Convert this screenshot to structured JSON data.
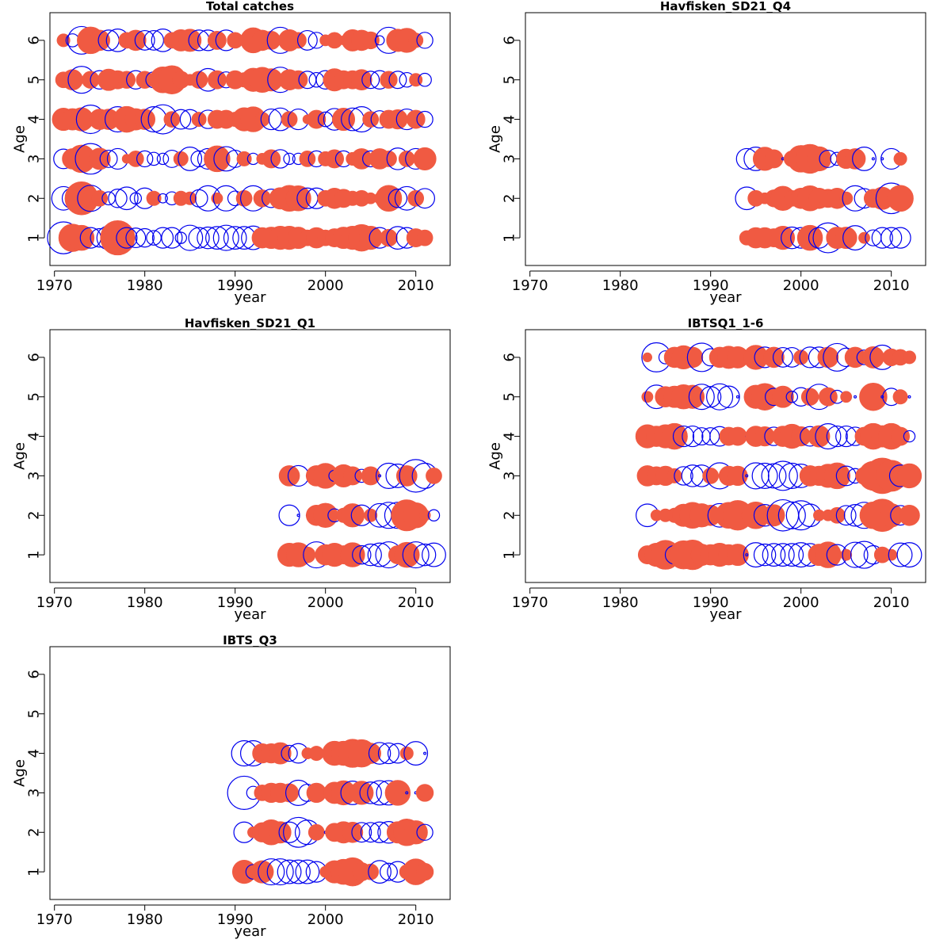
{
  "colors": {
    "positive": "#f05a42",
    "negative": "#0000ee"
  },
  "layout_grid": "3 rows x 2 columns, bottom-right empty",
  "chart_data": [
    {
      "type": "scatter",
      "title": "Total catches",
      "xlabel": "year",
      "ylabel": "Age",
      "xlim": [
        1969.5,
        2013.8
      ],
      "ylim": [
        0.3,
        6.7
      ],
      "xticks": [
        1970,
        1980,
        1990,
        2000,
        2010
      ],
      "yticks": [
        1,
        2,
        3,
        4,
        5,
        6
      ],
      "grid": false,
      "legend": "none",
      "marker": "bubble (size = |residual|, filled = positive, open = negative)",
      "ages": [
        1,
        2,
        3,
        4,
        5,
        6
      ],
      "years": [
        1971,
        1972,
        1973,
        1974,
        1975,
        1976,
        1977,
        1978,
        1979,
        1980,
        1981,
        1982,
        1983,
        1984,
        1985,
        1986,
        1987,
        1988,
        1989,
        1990,
        1991,
        1992,
        1993,
        1994,
        1995,
        1996,
        1997,
        1998,
        1999,
        2000,
        2001,
        2002,
        2003,
        2004,
        2005,
        2006,
        2007,
        2008,
        2009,
        2010,
        2011
      ],
      "residuals": [
        [
          -2.4,
          1.8,
          1.5,
          -1.0,
          -0.8,
          -1.3,
          2.8,
          -1.0,
          -0.9,
          -0.8,
          -0.5,
          -1.0,
          -1.0,
          -0.3,
          -1.5,
          -1.0,
          -1.1,
          -1.2,
          -1.5,
          -1.2,
          -1.2,
          -1.3,
          1.0,
          1.1,
          1.3,
          1.3,
          1.1,
          0.6,
          1.0,
          0.6,
          0.8,
          1.1,
          1.3,
          1.7,
          1.3,
          -1.0,
          0.7,
          -1.2,
          -1.0,
          0.8,
          0.6
        ],
        [
          -1.3,
          -1.0,
          2.6,
          -1.6,
          0.6,
          -0.4,
          -0.8,
          -1.2,
          -0.3,
          -1.0,
          0.5,
          -0.2,
          -0.4,
          0.5,
          0.4,
          -0.7,
          -1.5,
          0.3,
          -1.5,
          -0.5,
          0.6,
          -1.5,
          0.7,
          -0.8,
          1.1,
          1.6,
          1.5,
          -1.0,
          -1.0,
          0.6,
          1.0,
          0.8,
          0.5,
          0.6,
          0.3,
          0.3,
          1.6,
          -0.8,
          -1.3,
          0.6,
          -0.9
        ],
        [
          -0.9,
          1.0,
          1.8,
          -2.2,
          1.1,
          -0.7,
          -1.0,
          0.2,
          0.6,
          -0.6,
          -0.4,
          -0.3,
          -0.7,
          0.5,
          -1.3,
          -0.6,
          -1.0,
          1.6,
          -1.4,
          -0.7,
          0.5,
          -0.3,
          0.3,
          0.8,
          -0.8,
          -0.3,
          -0.3,
          0.6,
          -0.6,
          0.5,
          0.8,
          -0.6,
          0.4,
          1.0,
          -0.6,
          1.0,
          0.6,
          -1.1,
          0.6,
          -1.0,
          1.2
        ],
        [
          1.2,
          1.1,
          1.3,
          -1.9,
          1.0,
          1.0,
          -1.5,
          1.6,
          1.1,
          1.0,
          -1.5,
          -2.0,
          0.6,
          -0.9,
          -0.9,
          0.5,
          -0.8,
          0.8,
          0.8,
          0.5,
          1.3,
          1.5,
          0.5,
          -1.0,
          -1.2,
          0.6,
          -1.0,
          0.2,
          0.8,
          -0.5,
          -1.1,
          1.2,
          -1.2,
          -1.5,
          0.6,
          -0.7,
          0.8,
          0.9,
          -1.0,
          0.8,
          -0.6
        ],
        [
          0.6,
          1.0,
          -1.7,
          0.7,
          -0.8,
          1.1,
          0.8,
          0.7,
          -0.8,
          0.7,
          -0.6,
          1.6,
          1.9,
          0.7,
          0.3,
          0.7,
          -1.2,
          0.8,
          -0.6,
          0.8,
          0.5,
          1.3,
          1.5,
          1.2,
          -1.5,
          1.0,
          0.8,
          -0.7,
          -0.5,
          -0.8,
          1.2,
          0.8,
          0.8,
          1.0,
          -0.7,
          -0.8,
          0.7,
          -0.7,
          -0.5,
          0.4,
          -0.4
        ],
        [
          0.4,
          -0.4,
          -1.8,
          1.7,
          1.0,
          -1.0,
          -1.2,
          0.6,
          1.0,
          -0.9,
          -0.9,
          -1.2,
          0.6,
          1.1,
          1.2,
          -1.0,
          -1.0,
          0.8,
          -1.0,
          0.6,
          0.3,
          1.5,
          1.0,
          0.8,
          -1.6,
          1.1,
          0.6,
          -0.9,
          -0.6,
          0.3,
          0.6,
          0.2,
          1.1,
          1.0,
          0.7,
          -0.2,
          -1.6,
          1.2,
          1.4,
          0.5,
          -0.6
        ]
      ]
    },
    {
      "type": "scatter",
      "title": "Havfisken_SD21_Q4",
      "xlabel": "year",
      "ylabel": "Age",
      "xlim": [
        1969.5,
        2013.8
      ],
      "ylim": [
        0.3,
        6.7
      ],
      "xticks": [
        1970,
        1980,
        1990,
        2000,
        2010
      ],
      "yticks": [
        1,
        2,
        3,
        4,
        5,
        6
      ],
      "grid": false,
      "legend": "none",
      "marker": "bubble (size = |residual|, filled = positive, open = negative)",
      "ages": [
        1,
        2,
        3
      ],
      "years": [
        1994,
        1995,
        1996,
        1997,
        1998,
        1999,
        2000,
        2001,
        2002,
        2003,
        2004,
        2005,
        2006,
        2007,
        2008,
        2009,
        2010,
        2011
      ],
      "residuals": [
        [
          0.5,
          1.0,
          1.0,
          0.8,
          1.3,
          -1.1,
          -1.0,
          1.5,
          -1.0,
          -2.1,
          1.1,
          1.1,
          -1.4,
          0.3,
          -0.6,
          -1.0,
          -1.0,
          -1.0
        ],
        [
          -1.2,
          0.6,
          0.3,
          0.7,
          1.4,
          0.6,
          1.0,
          1.5,
          1.0,
          0.8,
          1.0,
          0.4,
          -1.5,
          -0.9,
          0.8,
          1.2,
          -2.2,
          1.6
        ],
        [
          -1.0,
          -1.3,
          1.3,
          0.8,
          0.0,
          0.6,
          1.7,
          2.0,
          1.4,
          -0.7,
          -0.4,
          0.9,
          1.0,
          -1.3,
          0.0,
          0.0,
          -1.0,
          0.4
        ]
      ]
    },
    {
      "type": "scatter",
      "title": "Havfisken_SD21_Q1",
      "xlabel": "year",
      "ylabel": "Age",
      "xlim": [
        1969.5,
        2013.8
      ],
      "ylim": [
        0.3,
        6.7
      ],
      "xticks": [
        1970,
        1980,
        1990,
        2000,
        2010
      ],
      "yticks": [
        1,
        2,
        3,
        4,
        5,
        6
      ],
      "grid": false,
      "legend": "none",
      "marker": "bubble (size = |residual|, filled = positive, open = negative)",
      "ages": [
        1,
        2,
        3
      ],
      "years": [
        1996,
        1997,
        1998,
        1999,
        2000,
        2001,
        2002,
        2003,
        2004,
        2005,
        2006,
        2007,
        2008,
        2009,
        2010,
        2011,
        2012
      ],
      "residuals": [
        [
          1.3,
          1.4,
          0.6,
          -1.6,
          1.0,
          1.3,
          0.8,
          1.4,
          -0.8,
          -1.1,
          -1.3,
          -1.6,
          0.8,
          1.5,
          -1.6,
          -1.1,
          -1.3
        ],
        [
          -1.0,
          0.0,
          0.0,
          1.0,
          1.4,
          -0.4,
          0.5,
          1.3,
          -1.0,
          0.4,
          -1.3,
          -1.6,
          -1.6,
          2.3,
          1.5,
          0.3,
          -0.3
        ],
        [
          1.0,
          -1.0,
          0.0,
          1.0,
          1.5,
          -0.3,
          1.2,
          0.8,
          -0.4,
          0.8,
          0.0,
          -1.5,
          -1.3,
          1.0,
          -2.5,
          -1.5,
          0.6
        ]
      ]
    },
    {
      "type": "scatter",
      "title": "IBTSQ1_1-6",
      "xlabel": "year",
      "ylabel": "Age",
      "xlim": [
        1969.5,
        2013.8
      ],
      "ylim": [
        0.3,
        6.7
      ],
      "xticks": [
        1970,
        1980,
        1990,
        2000,
        2010
      ],
      "yticks": [
        1,
        2,
        3,
        4,
        5,
        6
      ],
      "grid": false,
      "legend": "none",
      "marker": "bubble (size = |residual|, filled = positive, open = negative)",
      "ages": [
        1,
        2,
        3,
        4,
        5,
        6
      ],
      "years": [
        1983,
        1984,
        1985,
        1986,
        1987,
        1988,
        1989,
        1990,
        1991,
        1992,
        1993,
        1994,
        1995,
        1996,
        1997,
        1998,
        1999,
        2000,
        2001,
        2002,
        2003,
        2004,
        2005,
        2006,
        2007,
        2008,
        2009,
        2010,
        2011,
        2012
      ],
      "residuals": [
        [
          0.8,
          1.3,
          2.0,
          -0.8,
          1.9,
          2.1,
          1.1,
          1.0,
          1.3,
          1.0,
          1.1,
          0.0,
          -1.4,
          -1.1,
          -1.2,
          -1.2,
          -1.2,
          -1.4,
          -1.2,
          1.1,
          1.6,
          -1.0,
          0.3,
          -1.5,
          -1.7,
          -0.8,
          0.6,
          0.3,
          -1.3,
          -1.4
        ],
        [
          -1.2,
          0.3,
          0.4,
          0.5,
          1.2,
          1.6,
          1.3,
          1.0,
          -1.3,
          1.6,
          2.1,
          0.3,
          1.7,
          -1.1,
          1.1,
          -2.3,
          -1.7,
          -2.0,
          -1.2,
          0.3,
          0.3,
          0.6,
          -0.9,
          -1.1,
          -1.6,
          1.7,
          2.5,
          1.3,
          -0.9,
          1.0
        ],
        [
          1.0,
          0.8,
          0.9,
          0.5,
          -0.8,
          -1.1,
          -1.1,
          0.6,
          -1.6,
          0.9,
          0.9,
          0.0,
          -1.6,
          -1.5,
          -1.4,
          -2.0,
          -1.5,
          -1.3,
          1.0,
          0.9,
          1.3,
          1.6,
          -0.9,
          -0.5,
          0.7,
          2.0,
          3.0,
          2.3,
          -1.1,
          1.4
        ],
        [
          1.3,
          1.0,
          1.3,
          1.6,
          -1.0,
          -1.0,
          -0.7,
          -0.7,
          -0.9,
          0.8,
          0.8,
          0.0,
          1.0,
          0.9,
          -0.8,
          1.0,
          1.4,
          0.9,
          -0.9,
          1.1,
          -1.5,
          -1.0,
          -1.0,
          -0.8,
          0.8,
          1.6,
          1.1,
          1.6,
          0.8,
          -0.3
        ],
        [
          0.3,
          -1.3,
          1.0,
          1.1,
          1.4,
          1.3,
          -1.5,
          -1.0,
          -1.6,
          -1.1,
          0.0,
          0.0,
          1.3,
          1.7,
          -0.7,
          1.1,
          -0.3,
          -0.8,
          0.7,
          -1.5,
          0.8,
          -0.4,
          0.3,
          0.0,
          0.0,
          1.8,
          0.0,
          -0.7,
          0.5,
          0.0
        ],
        [
          0.2,
          -2.0,
          -0.4,
          1.0,
          1.3,
          1.0,
          -1.9,
          -0.7,
          1.0,
          1.2,
          1.1,
          0.0,
          1.4,
          -1.0,
          1.0,
          -0.9,
          -0.9,
          0.5,
          -1.0,
          -1.0,
          1.0,
          -1.8,
          -0.8,
          1.0,
          -0.5,
          1.1,
          -1.4,
          0.7,
          0.6,
          0.4
        ]
      ]
    },
    {
      "type": "scatter",
      "title": "IBTS_Q3",
      "xlabel": "year",
      "ylabel": "Age",
      "xlim": [
        1969.5,
        2013.8
      ],
      "ylim": [
        0.3,
        6.7
      ],
      "xticks": [
        1970,
        1980,
        1990,
        2000,
        2010
      ],
      "yticks": [
        1,
        2,
        3,
        4,
        5,
        6
      ],
      "grid": false,
      "legend": "none",
      "marker": "bubble (size = |residual|, filled = positive, open = negative)",
      "ages": [
        1,
        2,
        3,
        4
      ],
      "years": [
        1991,
        1992,
        1993,
        1994,
        1995,
        1996,
        1997,
        1998,
        1999,
        2000,
        2001,
        2002,
        2003,
        2004,
        2005,
        2006,
        2007,
        2008,
        2009,
        2010,
        2011
      ],
      "residuals": [
        [
          1.3,
          -0.5,
          1.2,
          -1.6,
          -1.6,
          -1.3,
          -1.3,
          -1.3,
          -1.0,
          0.3,
          1.2,
          1.5,
          1.9,
          0.8,
          0.6,
          -1.2,
          -0.7,
          -1.0,
          0.5,
          1.6,
          0.7
        ],
        [
          -1.0,
          0.3,
          0.9,
          1.5,
          1.1,
          -1.0,
          -2.1,
          -1.4,
          0.6,
          0.0,
          0.8,
          1.1,
          1.0,
          -0.9,
          -0.9,
          -1.0,
          -1.1,
          1.1,
          1.7,
          1.3,
          -0.6
        ],
        [
          -2.6,
          -0.4,
          0.6,
          0.9,
          0.9,
          0.8,
          -1.5,
          -0.7,
          0.9,
          0.0,
          1.1,
          1.4,
          -1.3,
          1.3,
          -1.1,
          -1.4,
          -1.4,
          1.5,
          0.0,
          0.0,
          0.7
        ],
        [
          -1.5,
          -1.5,
          0.9,
          0.9,
          1.1,
          -0.6,
          -0.9,
          0.3,
          0.5,
          0.0,
          1.4,
          1.4,
          1.9,
          1.8,
          1.0,
          -1.1,
          -1.0,
          -0.9,
          0.4,
          -1.3,
          0.0
        ]
      ]
    }
  ]
}
